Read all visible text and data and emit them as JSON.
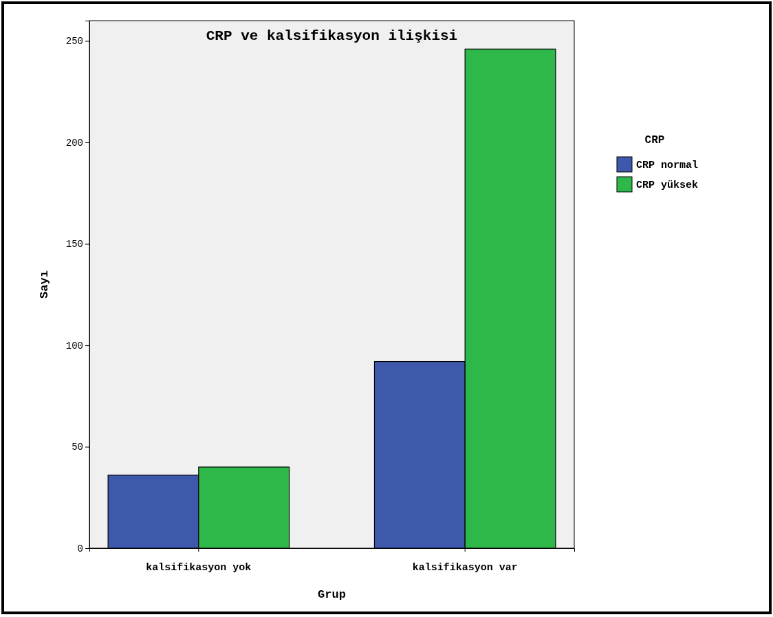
{
  "chart_data": {
    "type": "bar",
    "title": "CRP ve kalsifikasyon ilişkisi",
    "xlabel": "Grup",
    "ylabel": "Sayı",
    "legend_title": "CRP",
    "categories": [
      "kalsifikasyon yok",
      "kalsifikasyon var"
    ],
    "series": [
      {
        "name": "CRP normal",
        "color": "#3e58ac",
        "values": [
          36,
          92
        ]
      },
      {
        "name": "CRP yüksek",
        "color": "#2eb84a",
        "values": [
          40,
          246
        ]
      }
    ],
    "ylim": [
      0,
      260
    ],
    "yticks": [
      0,
      50,
      100,
      150,
      200,
      250
    ],
    "grid": false,
    "legend": "right"
  }
}
